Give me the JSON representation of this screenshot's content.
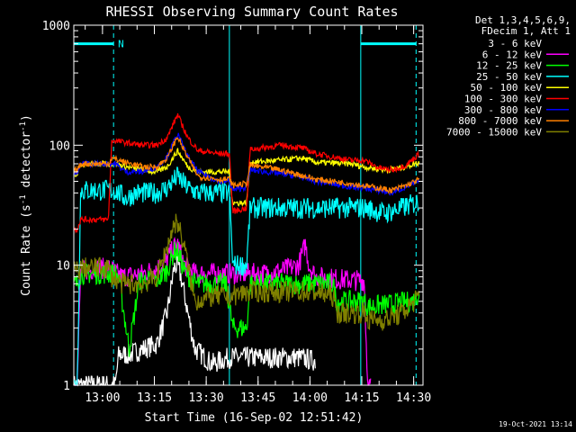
{
  "chart_data": {
    "type": "line",
    "title": "RHESSI Observing Summary Count Rates",
    "xlabel": "Start Time (16-Sep-02 12:51:42)",
    "ylabel_main": "Count Rate (s",
    "ylabel_sup1": "-1",
    "ylabel_mid": " detector",
    "ylabel_sup2": "-1",
    "ylabel_end": ")",
    "y_scale": "log",
    "ylim": [
      1,
      1000
    ],
    "xlim_minutes": [
      0,
      101
    ],
    "x_ticks": [
      {
        "label": "13:00",
        "t": 8.3
      },
      {
        "label": "13:15",
        "t": 23.3
      },
      {
        "label": "13:30",
        "t": 38.3
      },
      {
        "label": "13:45",
        "t": 53.3
      },
      {
        "label": "14:00",
        "t": 68.3
      },
      {
        "label": "14:15",
        "t": 83.3
      },
      {
        "label": "14:30",
        "t": 98.3
      }
    ],
    "y_ticks": [
      {
        "label": "1",
        "v": 1
      },
      {
        "label": "10",
        "v": 10
      },
      {
        "label": "100",
        "v": 100
      },
      {
        "label": "1000",
        "v": 1000
      }
    ],
    "legend": {
      "header1": "Det 1,3,4,5,6,9,",
      "header2": "FDecim 1, Att 1",
      "placement": "right"
    },
    "series": [
      {
        "name": "3 - 6 keV",
        "color": "#ffffff",
        "shown": "black",
        "points": [
          [
            0,
            1
          ],
          [
            12,
            1
          ],
          [
            13,
            1.8
          ],
          [
            16,
            1.8
          ],
          [
            20,
            2
          ],
          [
            24,
            2.2
          ],
          [
            27,
            4
          ],
          [
            29,
            9.5
          ],
          [
            30,
            10
          ],
          [
            31,
            8
          ],
          [
            33,
            4
          ],
          [
            35,
            2
          ],
          [
            37,
            1.8
          ],
          [
            40,
            1.5
          ],
          [
            45,
            1.7
          ],
          [
            55,
            1.7
          ],
          [
            65,
            1.7
          ],
          [
            70,
            1.6
          ]
        ]
      },
      {
        "name": "6 - 12 keV",
        "color": "#ff00ff",
        "points": [
          [
            0,
            1
          ],
          [
            1,
            1
          ],
          [
            2,
            9
          ],
          [
            10,
            9.5
          ],
          [
            14,
            8
          ],
          [
            20,
            8.5
          ],
          [
            26,
            10
          ],
          [
            29,
            14
          ],
          [
            30,
            15
          ],
          [
            32,
            10
          ],
          [
            35,
            8.5
          ],
          [
            40,
            8.5
          ],
          [
            45,
            8.5
          ],
          [
            50,
            8.5
          ],
          [
            55,
            8.5
          ],
          [
            60,
            9
          ],
          [
            65,
            10
          ],
          [
            67,
            15
          ],
          [
            68,
            10
          ],
          [
            70,
            8
          ],
          [
            80,
            7.5
          ],
          [
            84,
            7.5
          ],
          [
            85,
            1
          ],
          [
            86,
            1
          ]
        ]
      },
      {
        "name": "12 - 25 keV",
        "color": "#00ff00",
        "points": [
          [
            0,
            7
          ],
          [
            1,
            7
          ],
          [
            2,
            8.5
          ],
          [
            12,
            8.5
          ],
          [
            13,
            8
          ],
          [
            16,
            2
          ],
          [
            19,
            7.5
          ],
          [
            24,
            7.5
          ],
          [
            27,
            9
          ],
          [
            29,
            13
          ],
          [
            30,
            13
          ],
          [
            32,
            9
          ],
          [
            35,
            7
          ],
          [
            40,
            7
          ],
          [
            44,
            7
          ],
          [
            46,
            3
          ],
          [
            50,
            3
          ],
          [
            51,
            7
          ],
          [
            60,
            7
          ],
          [
            70,
            7
          ],
          [
            75,
            7
          ],
          [
            76,
            5
          ],
          [
            80,
            5
          ],
          [
            84,
            5
          ],
          [
            85,
            4.5
          ],
          [
            98,
            5
          ],
          [
            100,
            6
          ]
        ]
      },
      {
        "name": "25 - 50 keV",
        "color": "#00ffff",
        "points": [
          [
            0,
            1
          ],
          [
            1,
            1
          ],
          [
            2,
            42
          ],
          [
            12,
            42
          ],
          [
            15,
            36
          ],
          [
            18,
            40
          ],
          [
            24,
            40
          ],
          [
            27,
            44
          ],
          [
            30,
            55
          ],
          [
            33,
            44
          ],
          [
            36,
            40
          ],
          [
            42,
            40
          ],
          [
            45,
            40
          ],
          [
            46,
            10
          ],
          [
            48,
            10
          ],
          [
            50,
            10
          ],
          [
            51,
            30
          ],
          [
            55,
            30
          ],
          [
            60,
            30
          ],
          [
            70,
            30
          ],
          [
            80,
            30
          ],
          [
            84,
            30
          ],
          [
            90,
            27
          ],
          [
            95,
            30
          ],
          [
            100,
            34
          ]
        ]
      },
      {
        "name": "50 - 100 keV",
        "color": "#ffff00",
        "points": [
          [
            0,
            58
          ],
          [
            1,
            58
          ],
          [
            2,
            70
          ],
          [
            12,
            70
          ],
          [
            15,
            66
          ],
          [
            20,
            62
          ],
          [
            24,
            60
          ],
          [
            27,
            66
          ],
          [
            30,
            90
          ],
          [
            33,
            66
          ],
          [
            36,
            60
          ],
          [
            42,
            60
          ],
          [
            45,
            60
          ],
          [
            46,
            33
          ],
          [
            50,
            33
          ],
          [
            51,
            72
          ],
          [
            60,
            75
          ],
          [
            66,
            78
          ],
          [
            70,
            72
          ],
          [
            80,
            70
          ],
          [
            84,
            66
          ],
          [
            90,
            62
          ],
          [
            95,
            65
          ],
          [
            100,
            72
          ]
        ]
      },
      {
        "name": "100 - 300 keV",
        "color": "#ff0000",
        "points": [
          [
            0,
            20
          ],
          [
            1,
            20
          ],
          [
            2,
            24
          ],
          [
            10,
            24
          ],
          [
            11,
            110
          ],
          [
            15,
            105
          ],
          [
            20,
            100
          ],
          [
            24,
            100
          ],
          [
            27,
            115
          ],
          [
            30,
            180
          ],
          [
            33,
            115
          ],
          [
            36,
            90
          ],
          [
            42,
            85
          ],
          [
            45,
            85
          ],
          [
            46,
            28
          ],
          [
            50,
            30
          ],
          [
            51,
            92
          ],
          [
            60,
            100
          ],
          [
            66,
            95
          ],
          [
            70,
            85
          ],
          [
            80,
            75
          ],
          [
            84,
            75
          ],
          [
            88,
            65
          ],
          [
            92,
            62
          ],
          [
            96,
            68
          ],
          [
            100,
            85
          ]
        ]
      },
      {
        "name": "300 - 800 keV",
        "color": "#0000ff",
        "points": [
          [
            0,
            58
          ],
          [
            1,
            58
          ],
          [
            2,
            70
          ],
          [
            12,
            70
          ],
          [
            15,
            60
          ],
          [
            20,
            60
          ],
          [
            24,
            66
          ],
          [
            27,
            80
          ],
          [
            30,
            125
          ],
          [
            33,
            80
          ],
          [
            36,
            60
          ],
          [
            42,
            50
          ],
          [
            45,
            50
          ],
          [
            46,
            42
          ],
          [
            50,
            45
          ],
          [
            51,
            62
          ],
          [
            60,
            58
          ],
          [
            66,
            54
          ],
          [
            70,
            50
          ],
          [
            80,
            45
          ],
          [
            84,
            44
          ],
          [
            88,
            42
          ],
          [
            92,
            40
          ],
          [
            96,
            45
          ],
          [
            100,
            50
          ]
        ]
      },
      {
        "name": "800 - 7000 keV",
        "color": "#ff8000",
        "points": [
          [
            0,
            62
          ],
          [
            1,
            62
          ],
          [
            2,
            70
          ],
          [
            10,
            70
          ],
          [
            11,
            78
          ],
          [
            15,
            72
          ],
          [
            20,
            66
          ],
          [
            24,
            66
          ],
          [
            27,
            78
          ],
          [
            30,
            118
          ],
          [
            33,
            78
          ],
          [
            36,
            55
          ],
          [
            42,
            52
          ],
          [
            45,
            52
          ],
          [
            46,
            46
          ],
          [
            50,
            48
          ],
          [
            51,
            68
          ],
          [
            60,
            62
          ],
          [
            66,
            56
          ],
          [
            70,
            52
          ],
          [
            80,
            48
          ],
          [
            84,
            46
          ],
          [
            88,
            44
          ],
          [
            92,
            42
          ],
          [
            96,
            46
          ],
          [
            100,
            52
          ]
        ]
      },
      {
        "name": "7000 - 15000 keV",
        "color": "#808000",
        "points": [
          [
            0,
            9
          ],
          [
            1,
            9
          ],
          [
            2,
            9.5
          ],
          [
            10,
            9.5
          ],
          [
            11,
            8
          ],
          [
            14,
            7
          ],
          [
            20,
            7
          ],
          [
            24,
            8
          ],
          [
            27,
            14
          ],
          [
            29,
            22
          ],
          [
            30,
            23
          ],
          [
            32,
            14
          ],
          [
            35,
            5
          ],
          [
            40,
            5.5
          ],
          [
            45,
            5.5
          ],
          [
            50,
            6
          ],
          [
            55,
            6
          ],
          [
            60,
            6
          ],
          [
            65,
            6
          ],
          [
            70,
            6
          ],
          [
            75,
            5.5
          ],
          [
            76,
            4
          ],
          [
            84,
            4
          ],
          [
            85,
            3.5
          ],
          [
            90,
            3.5
          ],
          [
            95,
            4
          ],
          [
            100,
            5.5
          ]
        ]
      }
    ],
    "markers": {
      "color": "#00ffff",
      "label": "N",
      "bars": [
        [
          0,
          11.5
        ],
        [
          83,
          99
        ]
      ],
      "bar_level": 700,
      "solid_lines": [
        45,
        83
      ],
      "dashed_lines": [
        11.5,
        99
      ]
    },
    "timestamp": "19-Oct-2021 13:14"
  }
}
